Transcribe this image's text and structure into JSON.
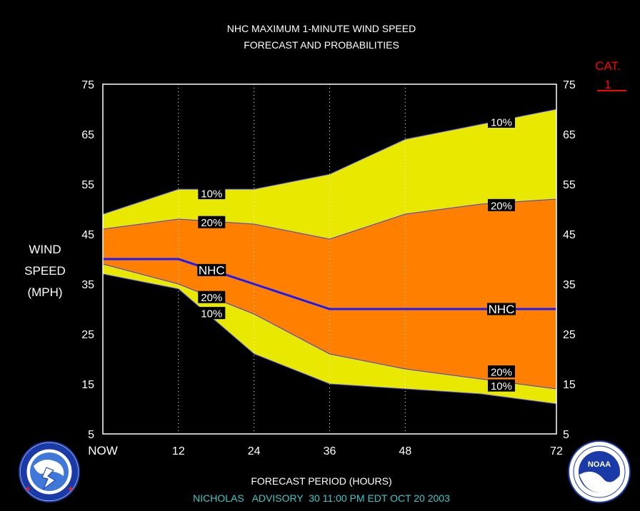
{
  "chart_data": {
    "type": "area",
    "title": "NHC MAXIMUM 1-MINUTE WIND SPEED",
    "subtitle": "FORECAST AND PROBABILITIES",
    "ylabel_lines": [
      "WIND",
      "SPEED",
      "(MPH)"
    ],
    "xlabel": "FORECAST PERIOD (HOURS)",
    "footer": "NICHOLAS   ADVISORY  30 11:00 PM EDT OCT 20 2003",
    "category_label": "CAT.",
    "category_value": "1",
    "xlim": [
      0,
      72
    ],
    "ylim": [
      5,
      75
    ],
    "y_ticks": [
      5,
      15,
      25,
      35,
      45,
      55,
      65,
      75
    ],
    "x_ticks": [
      {
        "x": 0,
        "label": "NOW"
      },
      {
        "x": 12,
        "label": "12"
      },
      {
        "x": 24,
        "label": "24"
      },
      {
        "x": 36,
        "label": "36"
      },
      {
        "x": 48,
        "label": "48"
      },
      {
        "x": 72,
        "label": "72"
      }
    ],
    "grid_x": [
      12,
      24,
      36,
      48
    ],
    "colors": {
      "background": "#000000",
      "band_10": "#e8e800",
      "band_20": "#ff8000",
      "nhc_line": "#1a1aff",
      "cat_label": "#ff0000",
      "footer": "#33cccc",
      "text": "#ffffff"
    },
    "x": [
      0,
      12,
      24,
      36,
      48,
      60,
      72
    ],
    "series": [
      {
        "name": "10%",
        "role": "upper_10",
        "values": [
          49,
          54,
          54,
          57,
          64,
          67,
          70
        ]
      },
      {
        "name": "20%",
        "role": "upper_20",
        "values": [
          46,
          48,
          47,
          44,
          49,
          51,
          52
        ]
      },
      {
        "name": "NHC",
        "role": "forecast",
        "values": [
          40,
          40,
          35,
          30,
          30,
          30,
          30
        ]
      },
      {
        "name": "20%",
        "role": "lower_20",
        "values": [
          39,
          35,
          29,
          21,
          18,
          16,
          14
        ]
      },
      {
        "name": "10%",
        "role": "lower_10",
        "values": [
          37,
          34,
          21,
          15,
          14,
          13,
          11
        ]
      }
    ],
    "annotations": [
      {
        "text": "10%",
        "x": 15,
        "y": 53.2
      },
      {
        "text": "20%",
        "x": 15,
        "y": 47.4
      },
      {
        "text": "NHC",
        "x": 15,
        "y": 37.8
      },
      {
        "text": "20%",
        "x": 15,
        "y": 32.4
      },
      {
        "text": "10%",
        "x": 15,
        "y": 29.2
      },
      {
        "text": "10%",
        "x": 61,
        "y": 67.5
      },
      {
        "text": "20%",
        "x": 61,
        "y": 50.8
      },
      {
        "text": "NHC",
        "x": 61,
        "y": 30
      },
      {
        "text": "20%",
        "x": 61,
        "y": 17.5
      },
      {
        "text": "10%",
        "x": 61,
        "y": 14.7
      }
    ]
  },
  "logos": {
    "left": {
      "name": "national-weather-service-seal",
      "text": "NATIONAL WEATHER SERVICE"
    },
    "right": {
      "name": "noaa-seal",
      "text": "NOAA"
    }
  }
}
